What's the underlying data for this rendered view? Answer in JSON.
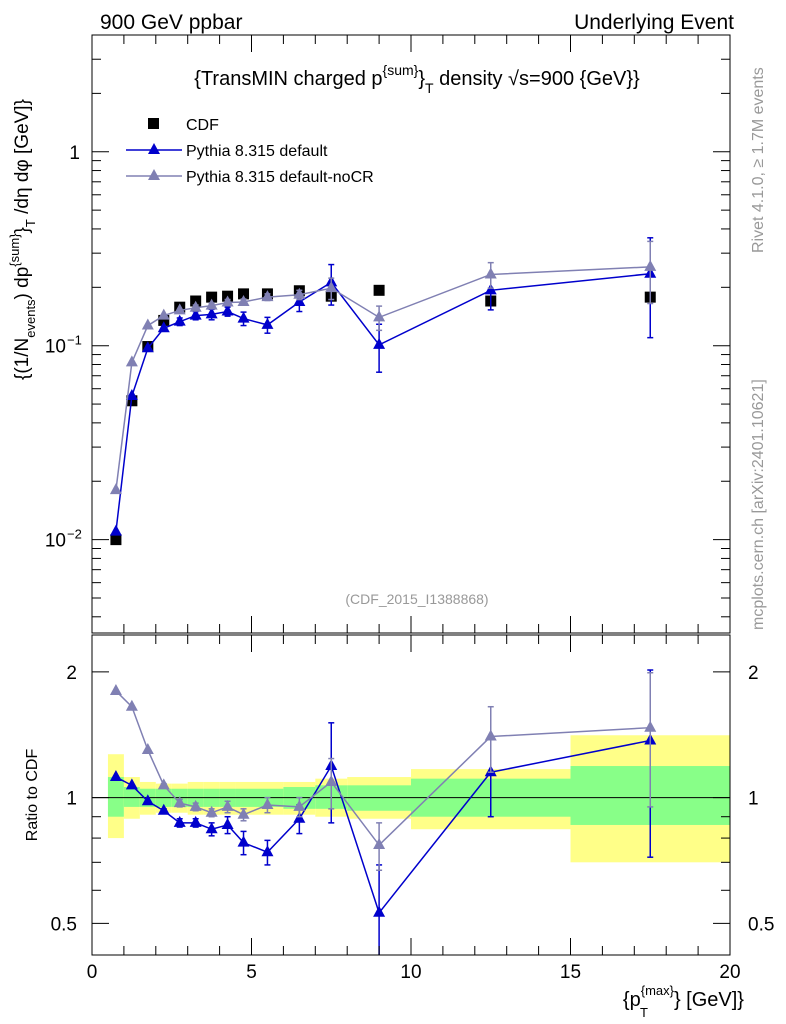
{
  "header": {
    "left": "900 GeV ppbar",
    "right": "Underlying Event"
  },
  "side_labels": {
    "rivet": "Rivet 4.1.0, ≥ 1.7M events",
    "mcplots": "mcplots.cern.ch [arXiv:2401.10621]"
  },
  "chart_data": [
    {
      "type": "scatter",
      "panel": "main",
      "title": "{TransMIN charged p^{sum}_T density √s=900 {GeV}}",
      "title_parts": {
        "pre": "{TransMIN charged p",
        "sup": "{sum}",
        "post": "}",
        "sub": "T",
        "tail": " density √s=900 {GeV}}"
      },
      "ylabel": "{(1/N_events) dp^{sum}_T /dη dφ [GeV]}",
      "ylabel_parts": {
        "a": "{(1/N",
        "a_sub": "events",
        "b": ") dp",
        "b_sup": "{sum}",
        "c": "}",
        "c_sub": "T",
        "d": " /dη  dφ [GeV]}"
      },
      "yscale": "log",
      "ylim": [
        0.0033,
        4.0
      ],
      "xlim": [
        0,
        20
      ],
      "yticks": [
        {
          "value": 0.01,
          "label": "10",
          "exp": "−2"
        },
        {
          "value": 0.1,
          "label": "10",
          "exp": "−1"
        },
        {
          "value": 1,
          "label": "1",
          "exp": ""
        }
      ],
      "watermark": "(CDF_2015_I1388868)",
      "legend_position": "top-left",
      "series": [
        {
          "name": "CDF",
          "color": "#000000",
          "marker": "square",
          "x": [
            0.75,
            1.25,
            1.75,
            2.25,
            2.75,
            3.25,
            3.75,
            4.25,
            4.75,
            5.5,
            6.5,
            7.5,
            9.0,
            12.5,
            17.5
          ],
          "y": [
            0.01,
            0.052,
            0.099,
            0.135,
            0.158,
            0.17,
            0.178,
            0.18,
            0.185,
            0.185,
            0.192,
            0.18,
            0.193,
            0.17,
            0.178
          ],
          "yerr": [
            0,
            0,
            0,
            0,
            0,
            0,
            0,
            0,
            0,
            0,
            0,
            0,
            0,
            0,
            0
          ]
        },
        {
          "name": "Pythia 8.315 default",
          "color": "#0000cc",
          "marker": "triangle",
          "x": [
            0.75,
            1.25,
            1.75,
            2.25,
            2.75,
            3.25,
            3.75,
            4.25,
            4.75,
            5.5,
            6.5,
            7.5,
            9.0,
            12.5,
            17.5
          ],
          "y": [
            0.011,
            0.055,
            0.097,
            0.123,
            0.133,
            0.143,
            0.145,
            0.15,
            0.138,
            0.128,
            0.168,
            0.212,
            0.101,
            0.193,
            0.235
          ],
          "yerr": [
            0,
            0,
            0,
            0,
            0.006,
            0.007,
            0.009,
            0.008,
            0.011,
            0.012,
            0.018,
            0.05,
            0.028,
            0.04,
            0.125
          ]
        },
        {
          "name": "Pythia 8.315 default-noCR",
          "color": "#8080b3",
          "marker": "triangle",
          "x": [
            0.75,
            1.25,
            1.75,
            2.25,
            2.75,
            3.25,
            3.75,
            4.25,
            4.75,
            5.5,
            6.5,
            7.5,
            9.0,
            12.5,
            17.5
          ],
          "y": [
            0.018,
            0.082,
            0.127,
            0.143,
            0.152,
            0.157,
            0.161,
            0.167,
            0.168,
            0.178,
            0.183,
            0.198,
            0.14,
            0.233,
            0.255
          ],
          "yerr": [
            0,
            0,
            0,
            0,
            0,
            0.005,
            0.005,
            0.006,
            0.006,
            0.007,
            0.01,
            0.025,
            0.02,
            0.035,
            0.09
          ]
        }
      ]
    },
    {
      "type": "scatter",
      "panel": "ratio",
      "ylabel": "Ratio to CDF",
      "xlabel": "{p^{max}_T} [GeV]}",
      "xlabel_parts": {
        "pre": "{p",
        "sup": "{max}",
        "sub": "T",
        "post": "} [GeV]}"
      },
      "yscale": "log",
      "ylim": [
        0.42,
        2.45
      ],
      "xlim": [
        0,
        20
      ],
      "xticks": [
        0,
        5,
        10,
        15,
        20
      ],
      "yticks": [
        {
          "value": 0.5,
          "label": "0.5"
        },
        {
          "value": 1,
          "label": "1"
        },
        {
          "value": 2,
          "label": "2"
        }
      ],
      "reference_line": 1,
      "bands": {
        "bins": [
          [
            0.5,
            1.0
          ],
          [
            1.0,
            1.5
          ],
          [
            1.5,
            2.0
          ],
          [
            2.0,
            2.5
          ],
          [
            2.5,
            3.0
          ],
          [
            3.0,
            3.5
          ],
          [
            3.5,
            4.0
          ],
          [
            4.0,
            4.5
          ],
          [
            4.5,
            5.0
          ],
          [
            5.0,
            6.0
          ],
          [
            6.0,
            7.0
          ],
          [
            7.0,
            8.0
          ],
          [
            8.0,
            10.0
          ],
          [
            10.0,
            15.0
          ],
          [
            15.0,
            20.0
          ]
        ],
        "yellow": [
          [
            0.8,
            1.27
          ],
          [
            0.89,
            1.12
          ],
          [
            0.91,
            1.09
          ],
          [
            0.92,
            1.08
          ],
          [
            0.92,
            1.08
          ],
          [
            0.91,
            1.09
          ],
          [
            0.91,
            1.09
          ],
          [
            0.91,
            1.09
          ],
          [
            0.91,
            1.09
          ],
          [
            0.91,
            1.09
          ],
          [
            0.91,
            1.09
          ],
          [
            0.9,
            1.11
          ],
          [
            0.89,
            1.12
          ],
          [
            0.84,
            1.17
          ],
          [
            0.7,
            1.41
          ]
        ],
        "green": [
          [
            0.9,
            1.12
          ],
          [
            0.95,
            1.06
          ],
          [
            0.95,
            1.05
          ],
          [
            0.95,
            1.05
          ],
          [
            0.95,
            1.05
          ],
          [
            0.95,
            1.05
          ],
          [
            0.95,
            1.05
          ],
          [
            0.95,
            1.05
          ],
          [
            0.95,
            1.05
          ],
          [
            0.95,
            1.05
          ],
          [
            0.94,
            1.06
          ],
          [
            0.94,
            1.07
          ],
          [
            0.93,
            1.07
          ],
          [
            0.9,
            1.11
          ],
          [
            0.86,
            1.19
          ]
        ]
      },
      "series": [
        {
          "name": "Pythia 8.315 default",
          "color": "#0000cc",
          "x": [
            0.75,
            1.25,
            1.75,
            2.25,
            2.75,
            3.25,
            3.75,
            4.25,
            4.75,
            5.5,
            6.5,
            7.5,
            9.0,
            12.5,
            17.5
          ],
          "y": [
            1.12,
            1.07,
            0.98,
            0.93,
            0.87,
            0.87,
            0.84,
            0.86,
            0.78,
            0.74,
            0.89,
            1.19,
            0.53,
            1.15,
            1.37
          ],
          "yerr": [
            0,
            0,
            0,
            0.01,
            0.02,
            0.02,
            0.03,
            0.04,
            0.05,
            0.05,
            0.07,
            0.32,
            0.16,
            0.25,
            0.65
          ]
        },
        {
          "name": "Pythia 8.315 default-noCR",
          "color": "#8080b3",
          "x": [
            0.75,
            1.25,
            1.75,
            2.25,
            2.75,
            3.25,
            3.75,
            4.25,
            4.75,
            5.5,
            6.5,
            7.5,
            9.0,
            12.5,
            17.5
          ],
          "y": [
            1.8,
            1.65,
            1.3,
            1.07,
            0.97,
            0.95,
            0.92,
            0.95,
            0.91,
            0.96,
            0.95,
            1.09,
            0.77,
            1.4,
            1.47
          ],
          "yerr": [
            0,
            0,
            0,
            0.01,
            0.02,
            0.02,
            0.02,
            0.03,
            0.03,
            0.04,
            0.05,
            0.15,
            0.1,
            0.25,
            0.52
          ]
        }
      ]
    }
  ]
}
